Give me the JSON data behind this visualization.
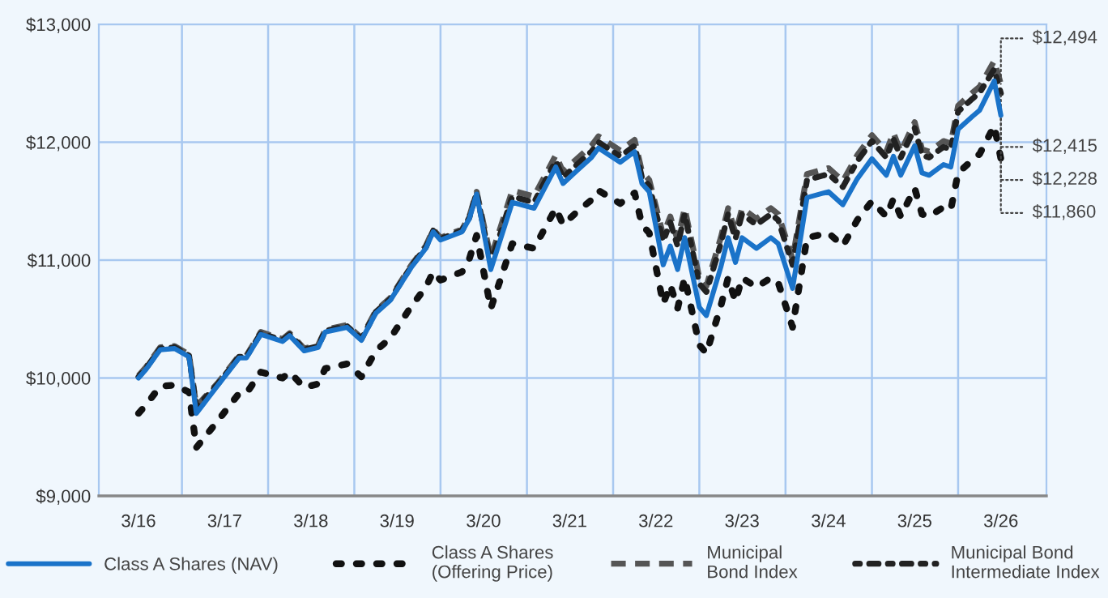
{
  "chart_data": {
    "type": "line",
    "x": [
      "2016-03",
      "2016-04",
      "2016-06",
      "2016-08",
      "2016-10",
      "2016-11",
      "2017-02",
      "2017-05",
      "2017-06",
      "2017-08",
      "2017-11",
      "2017-12",
      "2018-02",
      "2018-04",
      "2018-05",
      "2018-08",
      "2018-10",
      "2018-12",
      "2019-02",
      "2019-05",
      "2019-07",
      "2019-08",
      "2019-09",
      "2019-12",
      "2020-01",
      "2020-02",
      "2020-04",
      "2020-07",
      "2020-10",
      "2021-01",
      "2021-02",
      "2021-04",
      "2021-06",
      "2021-07",
      "2021-10",
      "2021-12",
      "2022-01",
      "2022-02",
      "2022-04",
      "2022-05",
      "2022-06",
      "2022-07",
      "2022-09",
      "2022-10",
      "2022-12",
      "2023-01",
      "2023-02",
      "2023-03",
      "2023-05",
      "2023-07",
      "2023-08",
      "2023-10",
      "2023-12",
      "2024-03",
      "2024-05",
      "2024-07",
      "2024-09",
      "2024-11",
      "2024-12",
      "2025-01",
      "2025-03",
      "2025-04",
      "2025-05",
      "2025-07",
      "2025-08",
      "2025-09",
      "2025-11",
      "2025-12",
      "2026-02",
      "2026-03"
    ],
    "series": [
      {
        "name": "Class A Shares (NAV)",
        "color": "#1a73c9",
        "line_style": "solid",
        "values": [
          10000,
          10070,
          10240,
          10250,
          10180,
          9700,
          9940,
          10170,
          10170,
          10370,
          10310,
          10360,
          10230,
          10260,
          10390,
          10430,
          10320,
          10550,
          10660,
          10940,
          11100,
          11240,
          11170,
          11240,
          11350,
          11560,
          10920,
          11490,
          11440,
          11790,
          11650,
          11760,
          11870,
          11950,
          11830,
          11920,
          11650,
          11580,
          10960,
          11120,
          10920,
          11190,
          10600,
          10530,
          10940,
          11190,
          10980,
          11190,
          11100,
          11190,
          11140,
          10760,
          11530,
          11580,
          11470,
          11690,
          11860,
          11720,
          11880,
          11720,
          11970,
          11740,
          11720,
          11810,
          11790,
          12110,
          12220,
          12270,
          12520,
          12228
        ]
      },
      {
        "name": "Class A Shares\n(Offering Price)",
        "color": "#111111",
        "line_style": "dotted",
        "values": [
          9700,
          9770,
          9930,
          9940,
          9880,
          9410,
          9640,
          9870,
          9870,
          10050,
          10000,
          10050,
          9920,
          9950,
          10080,
          10120,
          10010,
          10230,
          10340,
          10610,
          10770,
          10900,
          10830,
          10900,
          11010,
          11210,
          10590,
          11140,
          11100,
          11440,
          11300,
          11410,
          11510,
          11590,
          11480,
          11570,
          11300,
          11230,
          10630,
          10790,
          10590,
          10850,
          10280,
          10210,
          10610,
          10850,
          10650,
          10850,
          10770,
          10850,
          10810,
          10430,
          11190,
          11230,
          11120,
          11340,
          11500,
          11370,
          11520,
          11370,
          11610,
          11390,
          11370,
          11450,
          11430,
          11740,
          11850,
          11900,
          12140,
          11860
        ]
      },
      {
        "name": "Municipal\nBond Index",
        "color": "#555555",
        "line_style": "dashed",
        "values": [
          10020,
          10090,
          10260,
          10270,
          10200,
          9760,
          9960,
          10190,
          10190,
          10390,
          10330,
          10380,
          10250,
          10280,
          10410,
          10450,
          10340,
          10570,
          10680,
          10960,
          11120,
          11260,
          11190,
          11260,
          11370,
          11580,
          11020,
          11590,
          11540,
          11890,
          11750,
          11860,
          11970,
          12050,
          11930,
          12020,
          11750,
          11680,
          11210,
          11370,
          11170,
          11440,
          10850,
          10780,
          11190,
          11440,
          11230,
          11440,
          11350,
          11440,
          11390,
          11010,
          11730,
          11780,
          11670,
          11890,
          12060,
          11920,
          12080,
          11920,
          12170,
          11940,
          11920,
          12010,
          11990,
          12310,
          12420,
          12470,
          12690,
          12494
        ]
      },
      {
        "name": "Municipal Bond\nIntermediate Index",
        "color": "#222222",
        "line_style": "dashdot",
        "values": [
          10010,
          10080,
          10250,
          10260,
          10190,
          9750,
          9950,
          10180,
          10180,
          10380,
          10320,
          10370,
          10240,
          10270,
          10400,
          10440,
          10330,
          10560,
          10670,
          10950,
          11110,
          11250,
          11180,
          11250,
          11360,
          11570,
          10970,
          11540,
          11490,
          11840,
          11700,
          11810,
          11920,
          12000,
          11880,
          11970,
          11700,
          11630,
          11160,
          11320,
          11120,
          11390,
          10800,
          10730,
          11140,
          11390,
          11180,
          11390,
          11300,
          11390,
          11340,
          10960,
          11680,
          11730,
          11620,
          11840,
          12010,
          11870,
          12030,
          11870,
          12120,
          11890,
          11870,
          11960,
          11940,
          12260,
          12370,
          12420,
          12620,
          12415
        ]
      }
    ],
    "xlim": [
      "2015-09-15",
      "2026-09-10"
    ],
    "xticks": [
      {
        "value": "2016-03",
        "label": "3/16"
      },
      {
        "value": "2017-03",
        "label": "3/17"
      },
      {
        "value": "2018-03",
        "label": "3/18"
      },
      {
        "value": "2019-03",
        "label": "3/19"
      },
      {
        "value": "2020-03",
        "label": "3/20"
      },
      {
        "value": "2021-03",
        "label": "3/21"
      },
      {
        "value": "2022-03",
        "label": "3/22"
      },
      {
        "value": "2023-03",
        "label": "3/23"
      },
      {
        "value": "2024-03",
        "label": "3/24"
      },
      {
        "value": "2025-03",
        "label": "3/25"
      },
      {
        "value": "2026-03",
        "label": "3/26"
      },
      {
        "value": "2016-09",
        "label": null
      },
      {
        "value": "2017-09",
        "label": null
      },
      {
        "value": "2018-09",
        "label": null
      },
      {
        "value": "2019-09",
        "label": null
      },
      {
        "value": "2020-09",
        "label": null
      },
      {
        "value": "2021-09",
        "label": null
      },
      {
        "value": "2022-09",
        "label": null
      },
      {
        "value": "2023-09",
        "label": null
      },
      {
        "value": "2024-09",
        "label": null
      },
      {
        "value": "2025-09",
        "label": null
      }
    ],
    "ylim": [
      9000,
      13000
    ],
    "yticks": [
      {
        "value": 9000,
        "label": "$9,000"
      },
      {
        "value": 10000,
        "label": "$10,000"
      },
      {
        "value": 11000,
        "label": "$11,000"
      },
      {
        "value": 12000,
        "label": "$12,000"
      },
      {
        "value": 13000,
        "label": "$13,000"
      }
    ],
    "grid": true,
    "legend": "bottom",
    "marker": "none",
    "annotations": [
      {
        "text": "$12,494",
        "x": "2026-03",
        "y": 12494
      },
      {
        "text": "$12,415",
        "x": "2026-03",
        "y": 12415
      },
      {
        "text": "$12,228",
        "x": "2026-03",
        "y": 12228
      },
      {
        "text": "$11,860",
        "x": "2026-03",
        "y": 11860
      }
    ]
  }
}
